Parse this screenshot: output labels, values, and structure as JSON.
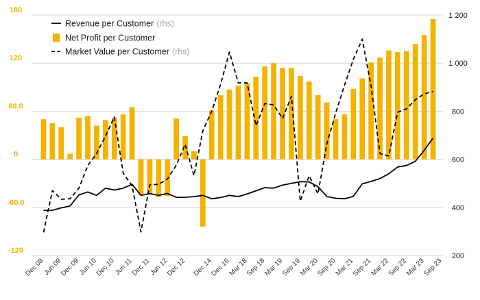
{
  "chart_data": {
    "type": "bar+line",
    "title": "",
    "legend": {
      "placement": "top-left",
      "items": [
        {
          "label": "Revenue per Customer",
          "suffix": "(rhs)",
          "kind": "solid-line"
        },
        {
          "label": "Net Profit per Customer",
          "suffix": "",
          "kind": "bar"
        },
        {
          "label": "Market Value per Customer",
          "suffix": "(rhs)",
          "kind": "dashed-line"
        }
      ]
    },
    "y_left": {
      "min": -120,
      "max": 180,
      "ticks": [
        -120,
        -60,
        0,
        60,
        120,
        180
      ],
      "tick_labels": [
        "-120",
        "-60.0",
        "0",
        "60.0",
        "120",
        "180"
      ]
    },
    "y_right": {
      "min": 200,
      "max": 1200,
      "ticks": [
        200,
        400,
        600,
        800,
        1000,
        1200
      ],
      "tick_labels": [
        "200",
        "400",
        "600",
        "800",
        "1 000",
        "1 200"
      ]
    },
    "x_tick_labels": [
      "Dec 08",
      "Jun 09",
      "Dec 09",
      "Jun 10",
      "Dec 10",
      "Jun 11",
      "Dec 11",
      "Jun 12",
      "Dec 12",
      "Dec 14",
      "Dec 16",
      "Mar 18",
      "Sep 18",
      "Mar 19",
      "Sep 19",
      "Mar 20",
      "Sep 20",
      "Mar 21",
      "Sep 21",
      "Mar 22",
      "Sep 22",
      "Mar 23",
      "Sep 23"
    ],
    "x_tick_positions": [
      0,
      2,
      4,
      6,
      8,
      10,
      12,
      14,
      16,
      19,
      21,
      23,
      25,
      27,
      29,
      31,
      33,
      35,
      37,
      39,
      41,
      43,
      45
    ],
    "series": [
      {
        "name": "Net Profit per Customer",
        "axis": "left",
        "values": [
          50,
          45,
          40,
          7,
          52,
          54,
          42,
          49,
          52,
          56,
          65,
          -44,
          -43,
          -47,
          -46,
          51,
          29,
          10,
          -84,
          61,
          80,
          87,
          92,
          95,
          103,
          116,
          120,
          114,
          114,
          104,
          97,
          80,
          71,
          50,
          56,
          88,
          101,
          121,
          127,
          136,
          134,
          135,
          144,
          155,
          175
        ]
      },
      {
        "name": "Revenue per Customer",
        "axis": "right",
        "values": [
          388,
          388,
          398,
          406,
          452,
          464,
          450,
          480,
          472,
          480,
          496,
          450,
          457,
          450,
          458,
          442,
          442,
          445,
          450,
          436,
          441,
          450,
          445,
          456,
          469,
          482,
          480,
          493,
          500,
          507,
          506,
          486,
          446,
          438,
          436,
          446,
          498,
          508,
          520,
          540,
          568,
          574,
          592,
          637,
          688
        ]
      },
      {
        "name": "Market Value per Customer",
        "axis": "right",
        "values": [
          296,
          470,
          434,
          436,
          480,
          574,
          624,
          696,
          776,
          542,
          490,
          298,
          494,
          496,
          518,
          576,
          662,
          532,
          720,
          800,
          912,
          1046,
          918,
          918,
          740,
          832,
          826,
          770,
          862,
          426,
          532,
          456,
          664,
          792,
          908,
          1016,
          1100,
          904,
          624,
          614,
          796,
          810,
          848,
          872,
          882
        ]
      }
    ],
    "colors": {
      "bars": "#f5b200",
      "lines": "#000000",
      "left_ticks": "#f5b200",
      "right_ticks": "#1a1a1a",
      "grid": "#d6d6d6"
    },
    "grid": true
  }
}
